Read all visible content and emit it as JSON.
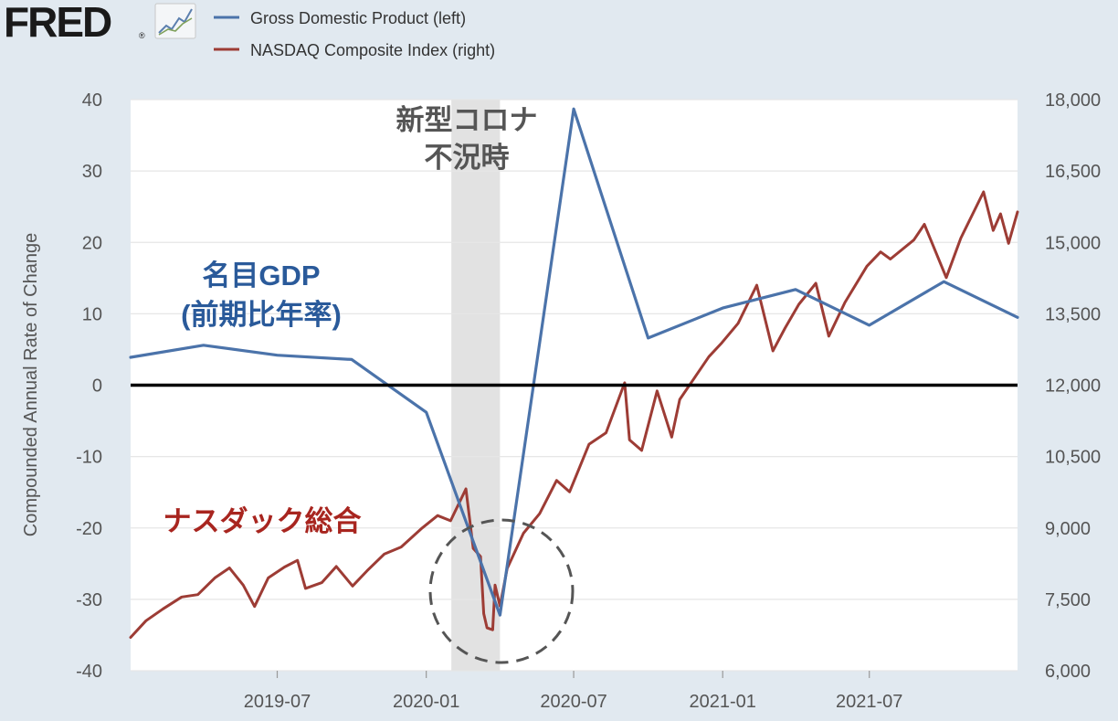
{
  "brand": {
    "name": "FRED",
    "trademark": "®"
  },
  "colors": {
    "background": "#e1e9f0",
    "plot_background": "#ffffff",
    "gdp": "#4b73aa",
    "nasdaq": "#9d3c35",
    "recession": "#e2e2e2",
    "zero_line": "#000000",
    "annotation_blue": "#2a5a9a",
    "annotation_red": "#a8251f",
    "annotation_gray": "#555555",
    "grid": "#e6e6e6"
  },
  "annotations": {
    "recession_line1": "新型コロナ",
    "recession_line2": "不況時",
    "gdp_line1": "名目GDP",
    "gdp_line2": "(前期比年率)",
    "nasdaq": "ナスダック総合"
  },
  "chart_data": {
    "type": "line",
    "ylabel_left": "Compounded Annual Rate of Change",
    "ylim_left": [
      -40,
      40
    ],
    "yticks_left": [
      "40",
      "30",
      "20",
      "10",
      "0",
      "-10",
      "-20",
      "-30",
      "-40"
    ],
    "ylim_right": [
      6000,
      18000
    ],
    "yticks_right": [
      "18,000",
      "16,500",
      "15,000",
      "13,500",
      "12,000",
      "10,500",
      "9,000",
      "7,500",
      "6,000"
    ],
    "xlim": [
      "2019-01-01",
      "2021-12-31"
    ],
    "xticks": [
      "2019-07",
      "2020-01",
      "2020-07",
      "2021-01",
      "2021-07"
    ],
    "recession": [
      "2020-02-01",
      "2020-04-01"
    ],
    "grid": true,
    "legend_position": "top",
    "series": [
      {
        "name": "Gross Domestic Product (left)",
        "axis": "left",
        "color": "#4b73aa",
        "points": [
          [
            "2019-01-01",
            3.9
          ],
          [
            "2019-04-01",
            5.6
          ],
          [
            "2019-07-01",
            4.2
          ],
          [
            "2019-10-01",
            3.6
          ],
          [
            "2020-01-01",
            -3.8
          ],
          [
            "2020-04-01",
            -32.2
          ],
          [
            "2020-07-01",
            38.7
          ],
          [
            "2020-10-01",
            6.6
          ],
          [
            "2021-01-01",
            10.8
          ],
          [
            "2021-04-01",
            13.4
          ],
          [
            "2021-07-01",
            8.4
          ],
          [
            "2021-10-01",
            14.5
          ],
          [
            "2021-12-31",
            9.5
          ]
        ]
      },
      {
        "name": "NASDAQ Composite Index (right)",
        "axis": "right",
        "color": "#9d3c35",
        "points": [
          [
            "2019-01-01",
            6700
          ],
          [
            "2019-01-20",
            7050
          ],
          [
            "2019-02-10",
            7300
          ],
          [
            "2019-03-05",
            7550
          ],
          [
            "2019-03-25",
            7600
          ],
          [
            "2019-04-15",
            7950
          ],
          [
            "2019-05-03",
            8160
          ],
          [
            "2019-05-20",
            7800
          ],
          [
            "2019-06-03",
            7350
          ],
          [
            "2019-06-20",
            7950
          ],
          [
            "2019-07-10",
            8180
          ],
          [
            "2019-07-26",
            8320
          ],
          [
            "2019-08-05",
            7730
          ],
          [
            "2019-08-25",
            7850
          ],
          [
            "2019-09-12",
            8190
          ],
          [
            "2019-10-02",
            7780
          ],
          [
            "2019-10-20",
            8100
          ],
          [
            "2019-11-10",
            8450
          ],
          [
            "2019-12-01",
            8600
          ],
          [
            "2019-12-27",
            9000
          ],
          [
            "2020-01-15",
            9260
          ],
          [
            "2020-01-31",
            9150
          ],
          [
            "2020-02-19",
            9820
          ],
          [
            "2020-02-28",
            8570
          ],
          [
            "2020-03-08",
            8400
          ],
          [
            "2020-03-12",
            7200
          ],
          [
            "2020-03-16",
            6900
          ],
          [
            "2020-03-23",
            6860
          ],
          [
            "2020-03-26",
            7800
          ],
          [
            "2020-04-01",
            7360
          ],
          [
            "2020-04-10",
            8150
          ],
          [
            "2020-04-30",
            8890
          ],
          [
            "2020-05-20",
            9300
          ],
          [
            "2020-06-10",
            10000
          ],
          [
            "2020-06-26",
            9760
          ],
          [
            "2020-07-20",
            10760
          ],
          [
            "2020-08-10",
            11000
          ],
          [
            "2020-09-02",
            12050
          ],
          [
            "2020-09-08",
            10850
          ],
          [
            "2020-09-23",
            10630
          ],
          [
            "2020-10-12",
            11880
          ],
          [
            "2020-10-30",
            10910
          ],
          [
            "2020-11-09",
            11700
          ],
          [
            "2020-11-25",
            12100
          ],
          [
            "2020-12-15",
            12600
          ],
          [
            "2020-12-31",
            12890
          ],
          [
            "2021-01-20",
            13300
          ],
          [
            "2021-02-12",
            14100
          ],
          [
            "2021-03-04",
            12720
          ],
          [
            "2021-03-19",
            13200
          ],
          [
            "2021-04-05",
            13700
          ],
          [
            "2021-04-26",
            14140
          ],
          [
            "2021-05-12",
            13030
          ],
          [
            "2021-06-01",
            13740
          ],
          [
            "2021-06-28",
            14500
          ],
          [
            "2021-07-15",
            14800
          ],
          [
            "2021-07-27",
            14650
          ],
          [
            "2021-08-25",
            15050
          ],
          [
            "2021-09-07",
            15380
          ],
          [
            "2021-10-04",
            14260
          ],
          [
            "2021-10-22",
            15090
          ],
          [
            "2021-11-19",
            16060
          ],
          [
            "2021-12-01",
            15250
          ],
          [
            "2021-12-10",
            15600
          ],
          [
            "2021-12-20",
            14980
          ],
          [
            "2021-12-31",
            15640
          ]
        ]
      }
    ]
  }
}
